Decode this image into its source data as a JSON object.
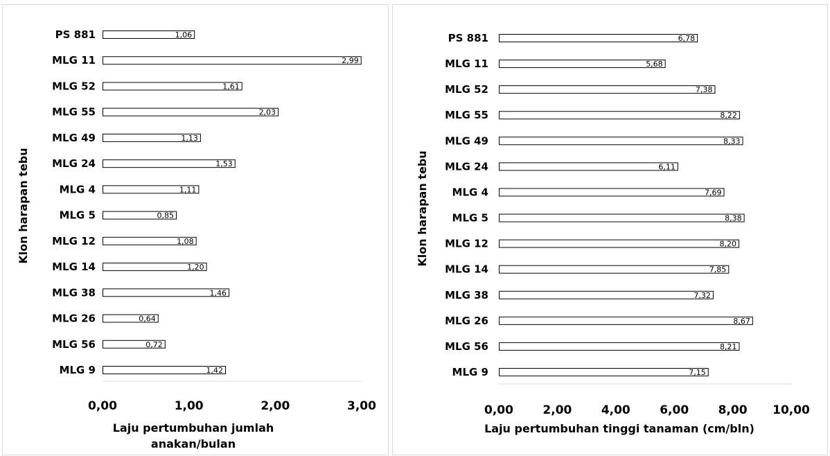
{
  "chart_data": [
    {
      "type": "bar",
      "orientation": "horizontal",
      "categories": [
        "PS 881",
        "MLG 11",
        "MLG 52",
        "MLG 55",
        "MLG 49",
        "MLG 24",
        "MLG 4",
        "MLG 5",
        "MLG 12",
        "MLG 14",
        "MLG 38",
        "MLG 26",
        "MLG 56",
        "MLG 9"
      ],
      "values": [
        1.06,
        2.99,
        1.61,
        2.03,
        1.13,
        1.53,
        1.11,
        0.85,
        1.08,
        1.2,
        1.46,
        0.64,
        0.72,
        1.42
      ],
      "data_labels": [
        "1,06",
        "2,99",
        "1,61",
        "2,03",
        "1,13",
        "1,53",
        "1,11",
        "0,85",
        "1,08",
        "1,20",
        "1,46",
        "0,64",
        "0,72",
        "1,42"
      ],
      "xlabel": [
        "Laju pertumbuhan jumlah",
        "anakan/bulan"
      ],
      "ylabel": "Klon harapan tebu",
      "xlim": [
        0,
        3
      ],
      "xticks": [
        0,
        1,
        2,
        3
      ],
      "xtick_labels": [
        "0,00",
        "1,00",
        "2,00",
        "3,00"
      ],
      "grid": false,
      "bar_fill": "#ffffff",
      "bar_stroke": "#000000"
    },
    {
      "type": "bar",
      "orientation": "horizontal",
      "categories": [
        "PS 881",
        "MLG 11",
        "MLG 52",
        "MLG 55",
        "MLG 49",
        "MLG 24",
        "MLG 4",
        "MLG 5",
        "MLG 12",
        "MLG 14",
        "MLG 38",
        "MLG 26",
        "MLG 56",
        "MLG 9"
      ],
      "values": [
        6.78,
        5.68,
        7.38,
        8.22,
        8.33,
        6.11,
        7.69,
        8.38,
        8.2,
        7.85,
        7.32,
        8.67,
        8.21,
        7.15
      ],
      "data_labels": [
        "6,78",
        "5,68",
        "7,38",
        "8,22",
        "8,33",
        "6,11",
        "7,69",
        "8,38",
        "8,20",
        "7,85",
        "7,32",
        "8,67",
        "8,21",
        "7,15"
      ],
      "xlabel": [
        "Laju pertumbuhan tinggi tanaman (cm/bln)"
      ],
      "ylabel": "Klon harapan tebu",
      "xlim": [
        0,
        10
      ],
      "xticks": [
        0,
        2,
        4,
        6,
        8,
        10
      ],
      "xtick_labels": [
        "0,00",
        "2,00",
        "4,00",
        "6,00",
        "8,00",
        "10,00"
      ],
      "grid": false,
      "bar_fill": "#ffffff",
      "bar_stroke": "#000000"
    }
  ]
}
